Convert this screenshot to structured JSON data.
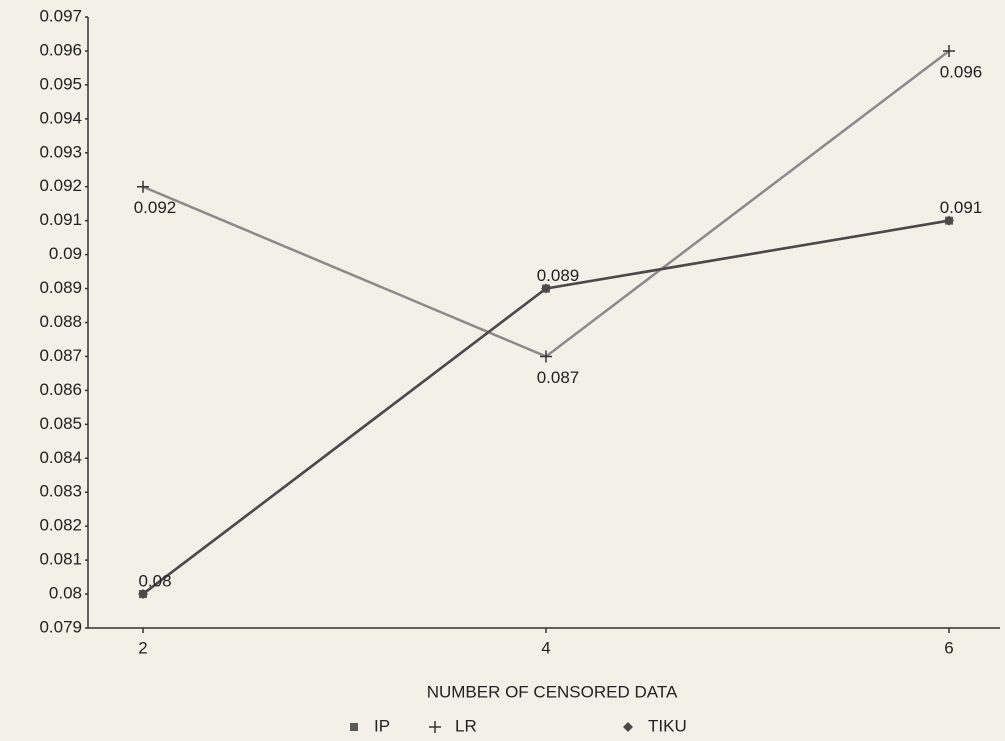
{
  "chart_data": {
    "type": "line",
    "x_label": "NUMBER OF CENSORED DATA",
    "categories": [
      "2",
      "4",
      "6"
    ],
    "series": [
      {
        "name": "IP",
        "color": "#5a5a5a",
        "marker": "square",
        "values": [
          0.08,
          0.089,
          0.091
        ]
      },
      {
        "name": "LR",
        "color": "#8a8a8a",
        "marker": "plus",
        "values": [
          0.092,
          0.087,
          0.096
        ]
      },
      {
        "name": "TIKU",
        "color": "#4a4a4a",
        "marker": "diamond",
        "values": [
          0.08,
          0.089,
          0.091
        ]
      }
    ],
    "data_labels": [
      "LR",
      "TIKU"
    ],
    "ylim": [
      0.079,
      0.097
    ],
    "yticks": [
      0.079,
      0.08,
      0.081,
      0.082,
      0.083,
      0.084,
      0.085,
      0.086,
      0.087,
      0.088,
      0.089,
      0.09,
      0.091,
      0.092,
      0.093,
      0.094,
      0.095,
      0.096,
      0.097
    ],
    "grid": false
  }
}
